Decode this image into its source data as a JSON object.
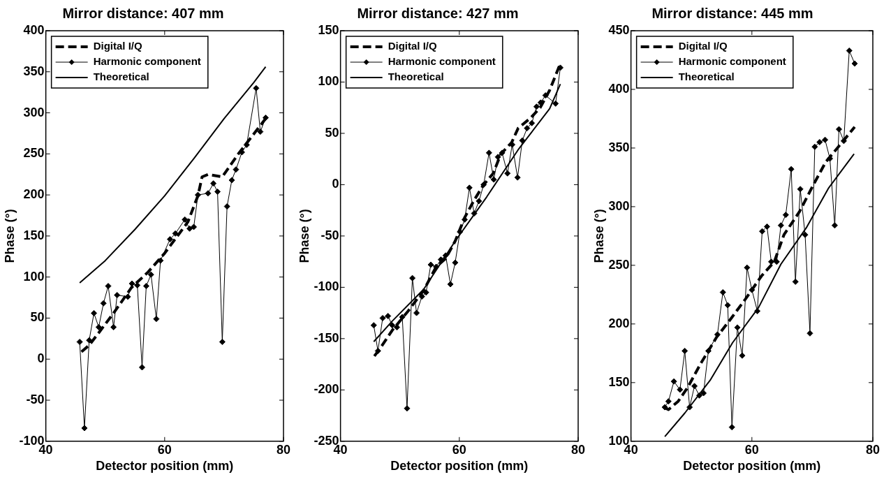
{
  "chart_data": [
    {
      "type": "line",
      "title": "Mirror distance: 407 mm",
      "xlabel": "Detector position (mm)",
      "ylabel": "Phase (°)",
      "xlim": [
        40,
        80
      ],
      "xticks": [
        40,
        60,
        80
      ],
      "ylim": [
        -100,
        400
      ],
      "yticks": [
        -100,
        -50,
        0,
        50,
        100,
        150,
        200,
        250,
        300,
        350,
        400
      ],
      "grid": false,
      "legend": "top left",
      "series": [
        {
          "name": "Digital I/Q",
          "color": "#000000",
          "line_style": "dashed",
          "marker": "none",
          "x": [
            46,
            47.3,
            49,
            51.4,
            54.4,
            57.2,
            60,
            63.9,
            65.6,
            66.3,
            67.3,
            69.7,
            72.5,
            77
          ],
          "values": [
            9,
            17,
            33,
            56,
            87,
            106,
            129,
            167,
            199,
            222,
            225,
            222,
            251,
            293
          ]
        },
        {
          "name": "Harmonic component",
          "color": "#000000",
          "line_style": "solid",
          "marker": "diamond",
          "x": [
            45.7,
            46.5,
            47.3,
            48.1,
            48.9,
            49.7,
            50.5,
            51.4,
            52.0,
            53.8,
            54.5,
            55.4,
            56.2,
            56.9,
            57.7,
            58.6,
            59.3,
            60.9,
            61.8,
            63.4,
            64.2,
            64.9,
            65.6,
            67.3,
            68.2,
            68.9,
            69.7,
            70.5,
            71.3,
            72.0,
            73.0,
            73.8,
            75.4,
            76.1,
            77.0
          ],
          "values": [
            21,
            -84,
            23,
            56,
            39,
            68,
            89,
            39,
            78,
            76,
            92,
            90,
            -10,
            89,
            103,
            49,
            120,
            146,
            153,
            170,
            159,
            161,
            200,
            202,
            214,
            204,
            21,
            186,
            218,
            231,
            252,
            261,
            330,
            277,
            294
          ]
        },
        {
          "name": "Theoretical",
          "color": "#000000",
          "line_style": "solid",
          "marker": "none",
          "x": [
            45.7,
            50,
            55,
            60,
            65,
            70,
            75,
            77
          ],
          "values": [
            93,
            120,
            158,
            199,
            245,
            293,
            337,
            356
          ]
        }
      ]
    },
    {
      "type": "line",
      "title": "Mirror distance: 427 mm",
      "xlabel": "Detector position (mm)",
      "ylabel": "Phase (°)",
      "xlim": [
        40,
        80
      ],
      "xticks": [
        40,
        60,
        80
      ],
      "ylim": [
        -250,
        150
      ],
      "yticks": [
        -250,
        -200,
        -150,
        -100,
        -50,
        0,
        50,
        100,
        150
      ],
      "grid": false,
      "legend": "top left",
      "series": [
        {
          "name": "Digital I/Q",
          "color": "#000000",
          "line_style": "dashed",
          "marker": "none",
          "x": [
            45.7,
            46.6,
            48.7,
            51.4,
            54,
            56.1,
            57.7,
            59.3,
            60.9,
            62.5,
            64.1,
            65.7,
            67,
            68.8,
            69.9,
            72,
            73.6,
            75.2,
            77
          ],
          "values": [
            -167,
            -160,
            -142,
            -123,
            -103,
            -80,
            -72,
            -55,
            -32,
            -15,
            0,
            11,
            30,
            41,
            55,
            65,
            75,
            92,
            118
          ]
        },
        {
          "name": "Harmonic component",
          "color": "#000000",
          "line_style": "solid",
          "marker": "diamond",
          "x": [
            45.6,
            46.3,
            47.1,
            48.0,
            48.7,
            49.5,
            50.4,
            51.2,
            52.1,
            52.8,
            53.7,
            54.4,
            55.2,
            56.1,
            56.9,
            57.7,
            58.5,
            59.3,
            60.1,
            60.9,
            61.7,
            62.5,
            63.3,
            64.1,
            65.0,
            65.8,
            66.5,
            67.2,
            68.1,
            68.9,
            69.8,
            70.6,
            71.4,
            72.2,
            73.0,
            73.7,
            74.5,
            76.2,
            77.0
          ],
          "values": [
            -137,
            -162,
            -130,
            -128,
            -137,
            -139,
            -129,
            -218,
            -91,
            -125,
            -109,
            -105,
            -78,
            -80,
            -73,
            -69,
            -97,
            -76,
            -46,
            -34,
            -3,
            -28,
            -16,
            0,
            31,
            5,
            27,
            31,
            11,
            39,
            7,
            43,
            55,
            60,
            76,
            80,
            87,
            79,
            114
          ]
        },
        {
          "name": "Theoretical",
          "color": "#000000",
          "line_style": "solid",
          "marker": "none",
          "x": [
            45.6,
            48.7,
            54,
            59.3,
            64.6,
            69.9,
            75.2,
            77
          ],
          "values": [
            -153,
            -133,
            -102,
            -55,
            -12,
            34,
            74,
            98
          ]
        }
      ]
    },
    {
      "type": "line",
      "title": "Mirror distance: 445 mm",
      "xlabel": "Detector position (mm)",
      "ylabel": "Phase (°)",
      "xlim": [
        40,
        80
      ],
      "xticks": [
        40,
        60,
        80
      ],
      "ylim": [
        100,
        450
      ],
      "yticks": [
        100,
        150,
        200,
        250,
        300,
        350,
        400,
        450
      ],
      "grid": false,
      "legend": "top left",
      "series": [
        {
          "name": "Digital I/Q",
          "color": "#000000",
          "line_style": "dashed",
          "marker": "none",
          "x": [
            45.4,
            46.2,
            47.8,
            49.4,
            51.5,
            54.2,
            56.6,
            58.9,
            61.6,
            63.7,
            65.3,
            67.9,
            70,
            72.2,
            74.3,
            77
          ],
          "values": [
            129,
            127,
            134,
            146,
            166,
            189,
            205,
            221,
            241,
            253,
            276,
            296,
            317,
            338,
            351,
            368
          ]
        },
        {
          "name": "Harmonic component",
          "color": "#000000",
          "line_style": "solid",
          "marker": "diamond",
          "x": [
            45.6,
            46.2,
            47.1,
            48.1,
            48.9,
            49.7,
            50.5,
            51.3,
            52.0,
            52.8,
            54.3,
            55.2,
            56.0,
            56.7,
            57.6,
            58.4,
            59.2,
            60.0,
            60.9,
            61.7,
            62.5,
            63.2,
            64.1,
            64.8,
            65.6,
            66.5,
            67.2,
            68.0,
            68.8,
            69.6,
            70.4,
            71.2,
            72.1,
            72.9,
            73.7,
            74.4,
            75.2,
            76.1,
            77.0
          ],
          "values": [
            129,
            134,
            151,
            144,
            177,
            129,
            147,
            139,
            141,
            177,
            191,
            227,
            216,
            112,
            197,
            173,
            248,
            229,
            211,
            279,
            283,
            253,
            253,
            284,
            293,
            332,
            236,
            315,
            276,
            192,
            351,
            355,
            357,
            341,
            284,
            366,
            356,
            433,
            422
          ]
        },
        {
          "name": "Theoretical",
          "color": "#000000",
          "line_style": "solid",
          "marker": "none",
          "x": [
            45.6,
            48.9,
            53.1,
            56.8,
            61.1,
            64.8,
            69,
            72.7,
            76.9
          ],
          "values": [
            104,
            124,
            152,
            184,
            214,
            251,
            282,
            316,
            345
          ]
        }
      ]
    }
  ]
}
